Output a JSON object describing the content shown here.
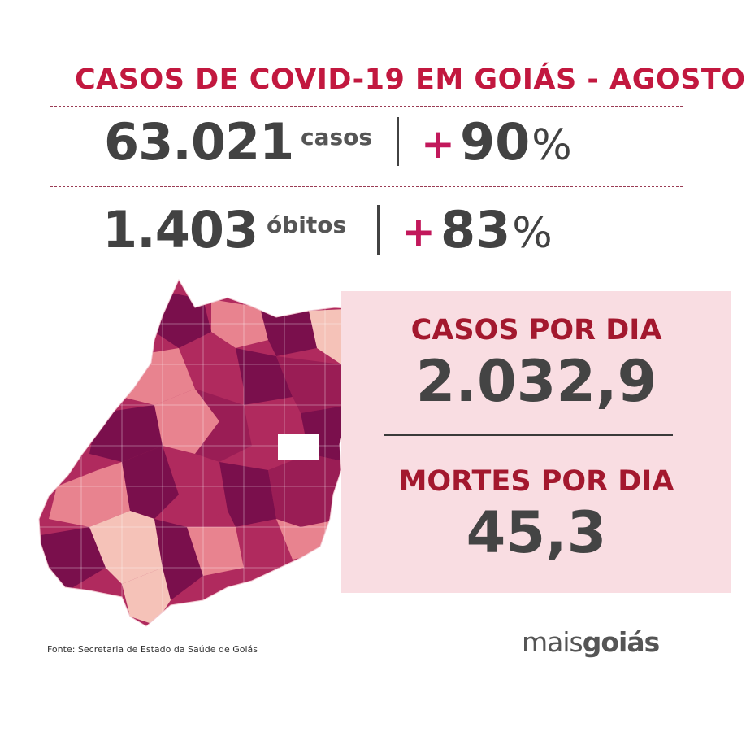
{
  "title": "CASOS DE COVID-19 EM GOIÁS - AGOSTO",
  "cases": {
    "value": "63.021",
    "unit": "casos",
    "plus": "+",
    "percent": "90",
    "percent_sign": "%"
  },
  "deaths": {
    "value": "1.403",
    "unit": "óbitos",
    "plus": "+",
    "percent": "83",
    "percent_sign": "%"
  },
  "cases_per_day": {
    "label": "CASOS POR DIA",
    "value": "2.032,9"
  },
  "deaths_per_day": {
    "label": "MORTES POR DIA",
    "value": "45,3"
  },
  "source": "Fonte: Secretaria de Estado da Saúde de Goiás",
  "brand": {
    "part1": "mais",
    "part2": "goiás"
  },
  "colors": {
    "title_red": "#c2183f",
    "plus_pink": "#c2185b",
    "number_gray": "#424242",
    "panel_bg": "#f9dde2",
    "panel_label": "#a3182e",
    "map_dark": "#7a0f4c",
    "map_mid": "#b02a5e",
    "map_light": "#e8838f",
    "map_pale": "#f5c2b8"
  }
}
